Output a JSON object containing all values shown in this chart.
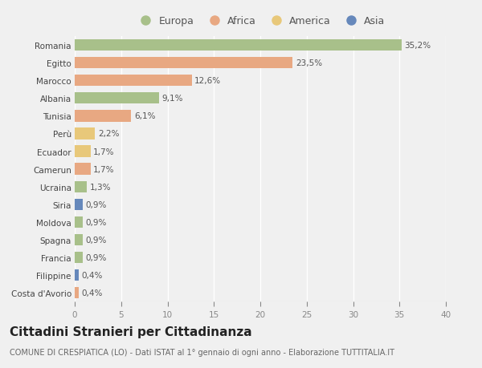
{
  "categories": [
    "Romania",
    "Egitto",
    "Marocco",
    "Albania",
    "Tunisia",
    "Perù",
    "Ecuador",
    "Camerun",
    "Ucraina",
    "Siria",
    "Moldova",
    "Spagna",
    "Francia",
    "Filippine",
    "Costa d'Avorio"
  ],
  "values": [
    35.2,
    23.5,
    12.6,
    9.1,
    6.1,
    2.2,
    1.7,
    1.7,
    1.3,
    0.9,
    0.9,
    0.9,
    0.9,
    0.4,
    0.4
  ],
  "labels": [
    "35,2%",
    "23,5%",
    "12,6%",
    "9,1%",
    "6,1%",
    "2,2%",
    "1,7%",
    "1,7%",
    "1,3%",
    "0,9%",
    "0,9%",
    "0,9%",
    "0,9%",
    "0,4%",
    "0,4%"
  ],
  "continents": [
    "Europa",
    "Africa",
    "Africa",
    "Europa",
    "Africa",
    "America",
    "America",
    "Africa",
    "Europa",
    "Asia",
    "Europa",
    "Europa",
    "Europa",
    "Asia",
    "Africa"
  ],
  "colors": {
    "Europa": "#a8c08a",
    "Africa": "#e8a882",
    "America": "#e8c87a",
    "Asia": "#6688bb"
  },
  "xlim": [
    0,
    40
  ],
  "xticks": [
    0,
    5,
    10,
    15,
    20,
    25,
    30,
    35,
    40
  ],
  "title": "Cittadini Stranieri per Cittadinanza",
  "subtitle": "COMUNE DI CRESPIATICA (LO) - Dati ISTAT al 1° gennaio di ogni anno - Elaborazione TUTTITALIA.IT",
  "bg_color": "#f0f0f0",
  "bar_height": 0.65,
  "grid_color": "#ffffff",
  "label_fontsize": 7.5,
  "tick_fontsize": 7.5,
  "title_fontsize": 11,
  "subtitle_fontsize": 7,
  "legend_order": [
    "Europa",
    "Africa",
    "America",
    "Asia"
  ]
}
